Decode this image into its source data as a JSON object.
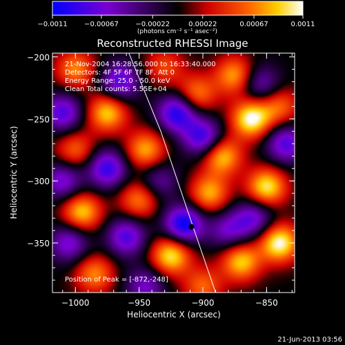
{
  "chart_data": {
    "type": "heatmap",
    "title": "Reconstructed RHESSI Image",
    "xlabel": "Heliocentric X (arcsec)",
    "ylabel": "Heliocentric Y (arcsec)",
    "xlim": [
      -1018,
      -828
    ],
    "ylim": [
      -390,
      -197
    ],
    "xticks": [
      -1000,
      -950,
      -900,
      -850
    ],
    "yticks": [
      -200,
      -250,
      -300,
      -350
    ],
    "xtick_labels": [
      "−1000",
      "−950",
      "−900",
      "−850"
    ],
    "ytick_labels": [
      "−200",
      "−250",
      "−300",
      "−350"
    ],
    "colorbar": {
      "min": -0.0011,
      "max": 0.0011,
      "ticks": [
        -0.0011,
        -0.00067,
        -0.00022,
        0.00022,
        0.00067,
        0.0011
      ],
      "tick_labels": [
        "−0.0011",
        "−0.00067",
        "−0.00022",
        "0.00022",
        "0.00067",
        "0.0011"
      ],
      "label": "(photons cm⁻² s⁻¹ asec⁻²)",
      "colors": [
        "#0000ff",
        "#7a00d0",
        "#000000",
        "#d00000",
        "#ff6000",
        "#ffd000",
        "#ffffff"
      ]
    },
    "limb_line": {
      "x": [
        -958,
        -933,
        -910,
        -890
      ],
      "y": [
        -197,
        -260,
        -330,
        -390
      ]
    },
    "blobs": [
      {
        "x": -1000,
        "y": -210,
        "v": 0.0007
      },
      {
        "x": -975,
        "y": -245,
        "v": 0.0009
      },
      {
        "x": -930,
        "y": -208,
        "v": 0.0005
      },
      {
        "x": -875,
        "y": -215,
        "v": 0.0008
      },
      {
        "x": -862,
        "y": -250,
        "v": 0.0011
      },
      {
        "x": -840,
        "y": -240,
        "v": 0.0006
      },
      {
        "x": -905,
        "y": -230,
        "v": 0.0007
      },
      {
        "x": -945,
        "y": -275,
        "v": 0.0008
      },
      {
        "x": -1000,
        "y": -275,
        "v": 0.0006
      },
      {
        "x": -885,
        "y": -280,
        "v": 0.0009
      },
      {
        "x": -850,
        "y": -305,
        "v": 0.001
      },
      {
        "x": -895,
        "y": -310,
        "v": 0.0008
      },
      {
        "x": -995,
        "y": -325,
        "v": 0.0009
      },
      {
        "x": -950,
        "y": -315,
        "v": 0.0007
      },
      {
        "x": -840,
        "y": -350,
        "v": 0.0011
      },
      {
        "x": -870,
        "y": -365,
        "v": 0.0009
      },
      {
        "x": -925,
        "y": -360,
        "v": 0.001
      },
      {
        "x": -985,
        "y": -375,
        "v": 0.0007
      },
      {
        "x": -900,
        "y": -385,
        "v": 0.0006
      },
      {
        "x": -920,
        "y": -245,
        "v": -0.001
      },
      {
        "x": -965,
        "y": -220,
        "v": -0.0008
      },
      {
        "x": -900,
        "y": -265,
        "v": -0.0009
      },
      {
        "x": -1010,
        "y": -245,
        "v": -0.0008
      },
      {
        "x": -975,
        "y": -290,
        "v": -0.0009
      },
      {
        "x": -915,
        "y": -335,
        "v": -0.0011
      },
      {
        "x": -960,
        "y": -345,
        "v": -0.0008
      },
      {
        "x": -860,
        "y": -330,
        "v": -0.0007
      },
      {
        "x": -835,
        "y": -270,
        "v": -0.0008
      },
      {
        "x": -855,
        "y": -222,
        "v": -0.0006
      },
      {
        "x": -1010,
        "y": -300,
        "v": -0.0007
      },
      {
        "x": -1005,
        "y": -350,
        "v": -0.0007
      },
      {
        "x": -945,
        "y": -385,
        "v": -0.0006
      },
      {
        "x": -880,
        "y": -340,
        "v": -0.0006
      },
      {
        "x": -935,
        "y": -300,
        "v": -0.0005
      }
    ],
    "annotations": {
      "time": "21-Nov-2004 16:28:56.000 to 16:33:40.000",
      "detectors": "Detectors: 4F 5F 6F 7F 8F, Att 0",
      "energy": "Energy Range: 25.0 - 50.0 keV",
      "method": "Clean    Total counts: 5.55E+04",
      "peak": "Position of Peak = [-872,-248]"
    }
  },
  "footer": {
    "timestamp": "21-Jun-2013 03:56"
  }
}
